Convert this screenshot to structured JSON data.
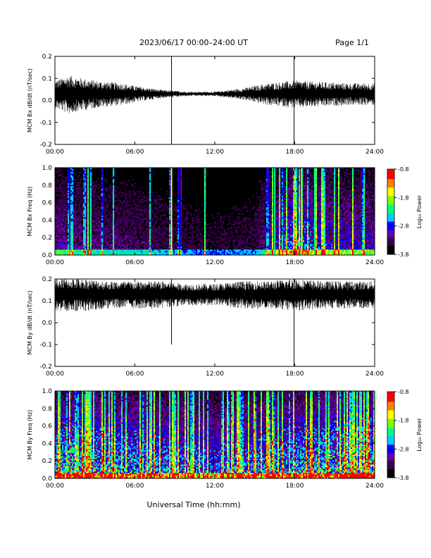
{
  "header": {
    "title": "2023/06/17  00:00–24:00 UT",
    "page": "Page 1/1"
  },
  "xlabel": "Universal Time (hh:mm)",
  "colorbar": {
    "label": "Log₁₀ Power",
    "ticks": [
      "-0.8",
      "-1.8",
      "-2.8",
      "-3.8"
    ],
    "range": [
      -3.8,
      -0.8
    ],
    "colors": [
      "#000000",
      "#3a0050",
      "#6a00a8",
      "#0000ff",
      "#00c8ff",
      "#00ff80",
      "#80ff00",
      "#ffff00",
      "#ff8000",
      "#ff0000"
    ]
  },
  "chart_data": [
    {
      "type": "line",
      "ylabel": "MCM Bx dB/dt (nT/sec)",
      "xlim": [
        0,
        24
      ],
      "ylim": [
        -0.2,
        0.2
      ],
      "xticks": [
        "00:00",
        "06:00",
        "12:00",
        "18:00",
        "24:00"
      ],
      "yticks": [
        "0.2",
        "0.1",
        "0.0",
        "-0.1",
        "-0.2"
      ],
      "baseline": 0.03,
      "noise_envelope": [
        [
          0,
          0.05
        ],
        [
          1,
          0.07
        ],
        [
          2,
          0.06
        ],
        [
          3,
          0.05
        ],
        [
          5,
          0.04
        ],
        [
          6,
          0.03
        ],
        [
          8,
          0.015
        ],
        [
          10,
          0.008
        ],
        [
          12,
          0.008
        ],
        [
          14,
          0.02
        ],
        [
          16,
          0.04
        ],
        [
          18,
          0.05
        ],
        [
          20,
          0.045
        ],
        [
          22,
          0.04
        ],
        [
          24,
          0.04
        ]
      ],
      "spikes": [
        {
          "time": 8.75,
          "low": -0.2,
          "high": 0.2
        },
        {
          "time": 17.95,
          "low": -0.2,
          "high": 0.2
        }
      ]
    },
    {
      "type": "heatmap",
      "ylabel": "MCM Bx Freq (Hz)",
      "xlim": [
        0,
        24
      ],
      "ylim": [
        0,
        1
      ],
      "xticks": [
        "00:00",
        "06:00",
        "12:00",
        "18:00",
        "24:00"
      ],
      "yticks": [
        "1.0",
        "0.8",
        "0.6",
        "0.4",
        "0.2",
        "0.0"
      ],
      "zlim": [
        -3.8,
        -0.8
      ],
      "activity_profile": [
        [
          0,
          0.35
        ],
        [
          3,
          0.3
        ],
        [
          6,
          0.25
        ],
        [
          9,
          0.2
        ],
        [
          12,
          0.15
        ],
        [
          15,
          0.2
        ],
        [
          16.5,
          0.45
        ],
        [
          18,
          0.6
        ],
        [
          21,
          0.45
        ],
        [
          24,
          0.4
        ]
      ],
      "lines": [
        {
          "time": 8.75,
          "level": 0.75
        },
        {
          "time": 16.5,
          "level": 0.55
        },
        {
          "time": 18.5,
          "level": 0.6
        },
        {
          "time": 19.5,
          "level": 0.5
        }
      ]
    },
    {
      "type": "line",
      "ylabel": "MCM By dB/dt (nT/sec)",
      "xlim": [
        0,
        24
      ],
      "ylim": [
        -0.2,
        0.2
      ],
      "xticks": [
        "00:00",
        "06:00",
        "12:00",
        "18:00",
        "24:00"
      ],
      "yticks": [
        "0.2",
        "0.1",
        "0.0",
        "-0.1",
        "-0.2"
      ],
      "baseline": 0.13,
      "noise_envelope": [
        [
          0,
          0.06
        ],
        [
          2,
          0.06
        ],
        [
          4,
          0.05
        ],
        [
          6,
          0.05
        ],
        [
          8,
          0.05
        ],
        [
          10,
          0.04
        ],
        [
          12,
          0.04
        ],
        [
          14,
          0.05
        ],
        [
          16,
          0.05
        ],
        [
          18,
          0.06
        ],
        [
          20,
          0.05
        ],
        [
          22,
          0.05
        ],
        [
          24,
          0.05
        ]
      ],
      "spikes": [
        {
          "time": 8.75,
          "low": -0.1,
          "high": 0.2
        },
        {
          "time": 17.95,
          "low": -0.2,
          "high": 0.2
        }
      ]
    },
    {
      "type": "heatmap",
      "ylabel": "MCM By Freq (Hz)",
      "xlim": [
        0,
        24
      ],
      "ylim": [
        0,
        1
      ],
      "xticks": [
        "00:00",
        "06:00",
        "12:00",
        "18:00",
        "24:00"
      ],
      "yticks": [
        "1.0",
        "0.8",
        "0.6",
        "0.4",
        "0.2",
        "0.0"
      ],
      "zlim": [
        -3.8,
        -0.8
      ],
      "activity_profile": [
        [
          0,
          0.75
        ],
        [
          3,
          0.7
        ],
        [
          6,
          0.65
        ],
        [
          9,
          0.6
        ],
        [
          12,
          0.55
        ],
        [
          15,
          0.6
        ],
        [
          18,
          0.7
        ],
        [
          21,
          0.75
        ],
        [
          24,
          0.8
        ]
      ],
      "lines": []
    }
  ]
}
